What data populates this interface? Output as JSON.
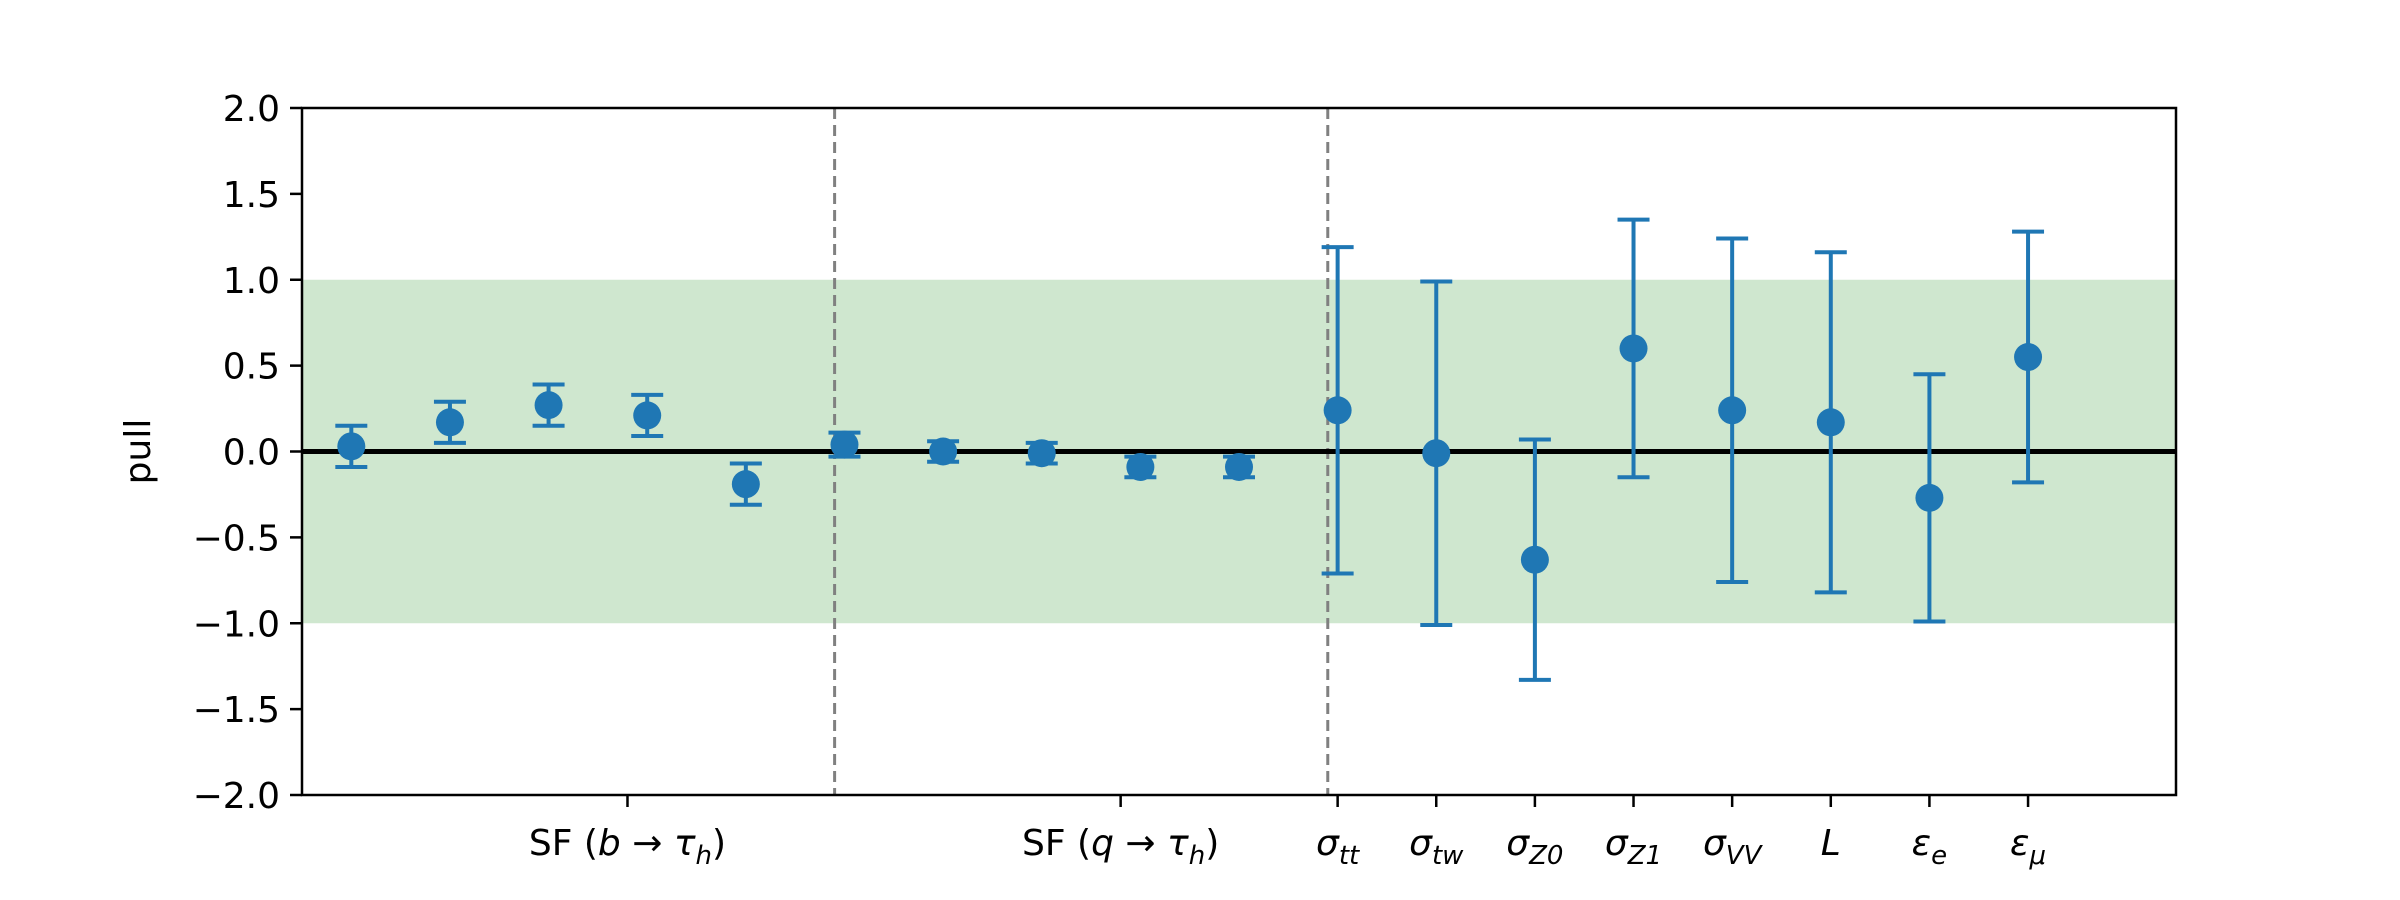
{
  "chart_data": {
    "type": "scatter",
    "ylabel": "pull",
    "xlabel": "",
    "title": "",
    "ylim": [
      -2.0,
      2.0
    ],
    "xlim": [
      -0.5,
      18.5
    ],
    "yticks": [
      "2.0",
      "1.5",
      "1.0",
      "0.5",
      "0.0",
      "−0.5",
      "−1.0",
      "−1.5",
      "−2.0"
    ],
    "ytick_values": [
      2.0,
      1.5,
      1.0,
      0.5,
      0.0,
      -0.5,
      -1.0,
      -1.5,
      -2.0
    ],
    "band": [
      -1.0,
      1.0
    ],
    "zero_line": 0.0,
    "group_separators": [
      4.9,
      9.9
    ],
    "grid": false,
    "colors": {
      "marker": "#1f77b4",
      "band": "#cfe7cf",
      "separator": "#808080",
      "zero": "#000000"
    },
    "points": [
      {
        "x": 0,
        "y": 0.03,
        "err": 0.12
      },
      {
        "x": 1,
        "y": 0.17,
        "err": 0.12
      },
      {
        "x": 2,
        "y": 0.27,
        "err": 0.12
      },
      {
        "x": 3,
        "y": 0.21,
        "err": 0.12
      },
      {
        "x": 4,
        "y": -0.19,
        "err": 0.12
      },
      {
        "x": 5,
        "y": 0.04,
        "err": 0.07
      },
      {
        "x": 6,
        "y": 0.0,
        "err": 0.06
      },
      {
        "x": 7,
        "y": -0.01,
        "err": 0.06
      },
      {
        "x": 8,
        "y": -0.09,
        "err": 0.06
      },
      {
        "x": 9,
        "y": -0.09,
        "err": 0.06
      },
      {
        "x": 10,
        "y": 0.24,
        "err": 0.95
      },
      {
        "x": 11,
        "y": -0.01,
        "err": 1.0
      },
      {
        "x": 12,
        "y": -0.63,
        "err": 0.7
      },
      {
        "x": 13,
        "y": 0.6,
        "err": 0.75
      },
      {
        "x": 14,
        "y": 0.24,
        "err": 1.0
      },
      {
        "x": 15,
        "y": 0.17,
        "err": 0.99
      },
      {
        "x": 16,
        "y": -0.27,
        "err": 0.72
      },
      {
        "x": 17,
        "y": 0.55,
        "err": 0.73
      }
    ],
    "categories": [
      {
        "x": 2.8,
        "parts": [
          [
            "n",
            "SF ("
          ],
          [
            "i",
            "b"
          ],
          [
            "n",
            " → "
          ],
          [
            "i",
            "τ"
          ],
          [
            "s",
            "h"
          ],
          [
            "n",
            ")"
          ]
        ]
      },
      {
        "x": 7.8,
        "parts": [
          [
            "n",
            "SF ("
          ],
          [
            "i",
            "q"
          ],
          [
            "n",
            " → "
          ],
          [
            "i",
            "τ"
          ],
          [
            "s",
            "h"
          ],
          [
            "n",
            ")"
          ]
        ]
      },
      {
        "x": 10,
        "parts": [
          [
            "i",
            "σ"
          ],
          [
            "s",
            "tt"
          ]
        ]
      },
      {
        "x": 11,
        "parts": [
          [
            "i",
            "σ"
          ],
          [
            "s",
            "tw"
          ]
        ]
      },
      {
        "x": 12,
        "parts": [
          [
            "i",
            "σ"
          ],
          [
            "s",
            "Z0"
          ]
        ]
      },
      {
        "x": 13,
        "parts": [
          [
            "i",
            "σ"
          ],
          [
            "s",
            "Z1"
          ]
        ]
      },
      {
        "x": 14,
        "parts": [
          [
            "i",
            "σ"
          ],
          [
            "s",
            "VV"
          ]
        ]
      },
      {
        "x": 15,
        "parts": [
          [
            "i",
            "L"
          ]
        ]
      },
      {
        "x": 16,
        "parts": [
          [
            "i",
            "ε"
          ],
          [
            "s",
            "e"
          ]
        ]
      },
      {
        "x": 17,
        "parts": [
          [
            "i",
            "ε"
          ],
          [
            "s",
            "μ"
          ]
        ]
      }
    ]
  }
}
